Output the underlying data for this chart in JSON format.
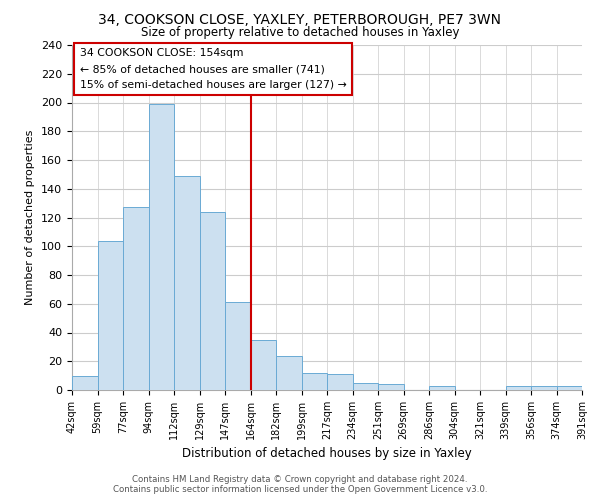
{
  "title": "34, COOKSON CLOSE, YAXLEY, PETERBOROUGH, PE7 3WN",
  "subtitle": "Size of property relative to detached houses in Yaxley",
  "xlabel": "Distribution of detached houses by size in Yaxley",
  "ylabel": "Number of detached properties",
  "bin_labels": [
    "42sqm",
    "59sqm",
    "77sqm",
    "94sqm",
    "112sqm",
    "129sqm",
    "147sqm",
    "164sqm",
    "182sqm",
    "199sqm",
    "217sqm",
    "234sqm",
    "251sqm",
    "269sqm",
    "286sqm",
    "304sqm",
    "321sqm",
    "339sqm",
    "356sqm",
    "374sqm",
    "391sqm"
  ],
  "bin_values": [
    10,
    104,
    127,
    199,
    149,
    124,
    61,
    35,
    24,
    12,
    11,
    5,
    4,
    0,
    3,
    0,
    0,
    3,
    3,
    3
  ],
  "bar_color": "#cce0f0",
  "bar_edge_color": "#6aaad4",
  "vline_color": "#cc0000",
  "annotation_line1": "34 COOKSON CLOSE: 154sqm",
  "annotation_line2": "← 85% of detached houses are smaller (741)",
  "annotation_line3": "15% of semi-detached houses are larger (127) →",
  "annotation_box_color": "#ffffff",
  "annotation_box_edge_color": "#cc0000",
  "ylim": [
    0,
    240
  ],
  "yticks": [
    0,
    20,
    40,
    60,
    80,
    100,
    120,
    140,
    160,
    180,
    200,
    220,
    240
  ],
  "footer1": "Contains HM Land Registry data © Crown copyright and database right 2024.",
  "footer2": "Contains public sector information licensed under the Open Government Licence v3.0.",
  "background_color": "#ffffff",
  "grid_color": "#cccccc"
}
